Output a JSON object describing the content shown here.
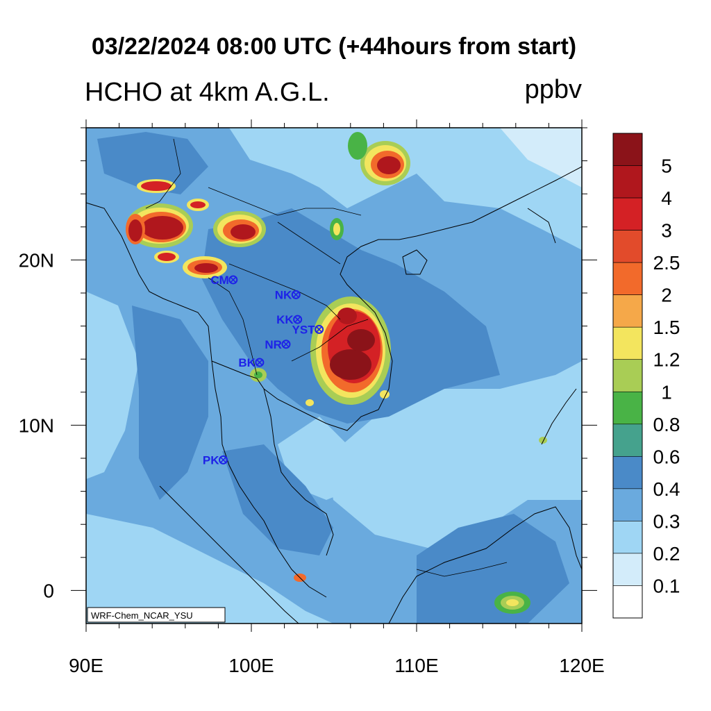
{
  "title": "03/22/2024 08:00 UTC (+44hours from start)",
  "subtitle_left": "HCHO at 4km A.G.L.",
  "subtitle_right": "ppbv",
  "credit": "WRF-Chem_NCAR_YSU",
  "x_ticks": [
    {
      "lon": 90,
      "label": "90E"
    },
    {
      "lon": 100,
      "label": "100E"
    },
    {
      "lon": 110,
      "label": "110E"
    },
    {
      "lon": 120,
      "label": "120E"
    }
  ],
  "y_ticks": [
    {
      "lat": 20,
      "label": "20N"
    },
    {
      "lat": 10,
      "label": "10N"
    },
    {
      "lat": 0,
      "label": "0"
    }
  ],
  "map_extent": {
    "lon": [
      90,
      120
    ],
    "lat": [
      -2,
      28
    ]
  },
  "colorbar": {
    "labels": [
      "5",
      "4",
      "3",
      "2.5",
      "2",
      "1.5",
      "1.2",
      "1",
      "0.8",
      "0.6",
      "0.4",
      "0.3",
      "0.2",
      "0.1"
    ],
    "colors": [
      "#8b1319",
      "#b0171d",
      "#d42125",
      "#e24b2b",
      "#f26a2b",
      "#f5a849",
      "#f3e55e",
      "#a9cd55",
      "#49b346",
      "#45a28d",
      "#4a8ac8",
      "#6aaade",
      "#9fd6f4",
      "#d3ecfa",
      "#ffffff"
    ]
  },
  "sites": [
    {
      "code": "CM",
      "lon": 98.9,
      "lat": 18.8
    },
    {
      "code": "NK",
      "lon": 102.7,
      "lat": 17.9
    },
    {
      "code": "KK",
      "lon": 102.8,
      "lat": 16.4
    },
    {
      "code": "YST",
      "lon": 104.1,
      "lat": 15.8
    },
    {
      "code": "NR",
      "lon": 102.1,
      "lat": 14.9
    },
    {
      "code": "BK",
      "lon": 100.5,
      "lat": 13.8
    },
    {
      "code": "PK",
      "lon": 98.3,
      "lat": 7.9
    }
  ]
}
